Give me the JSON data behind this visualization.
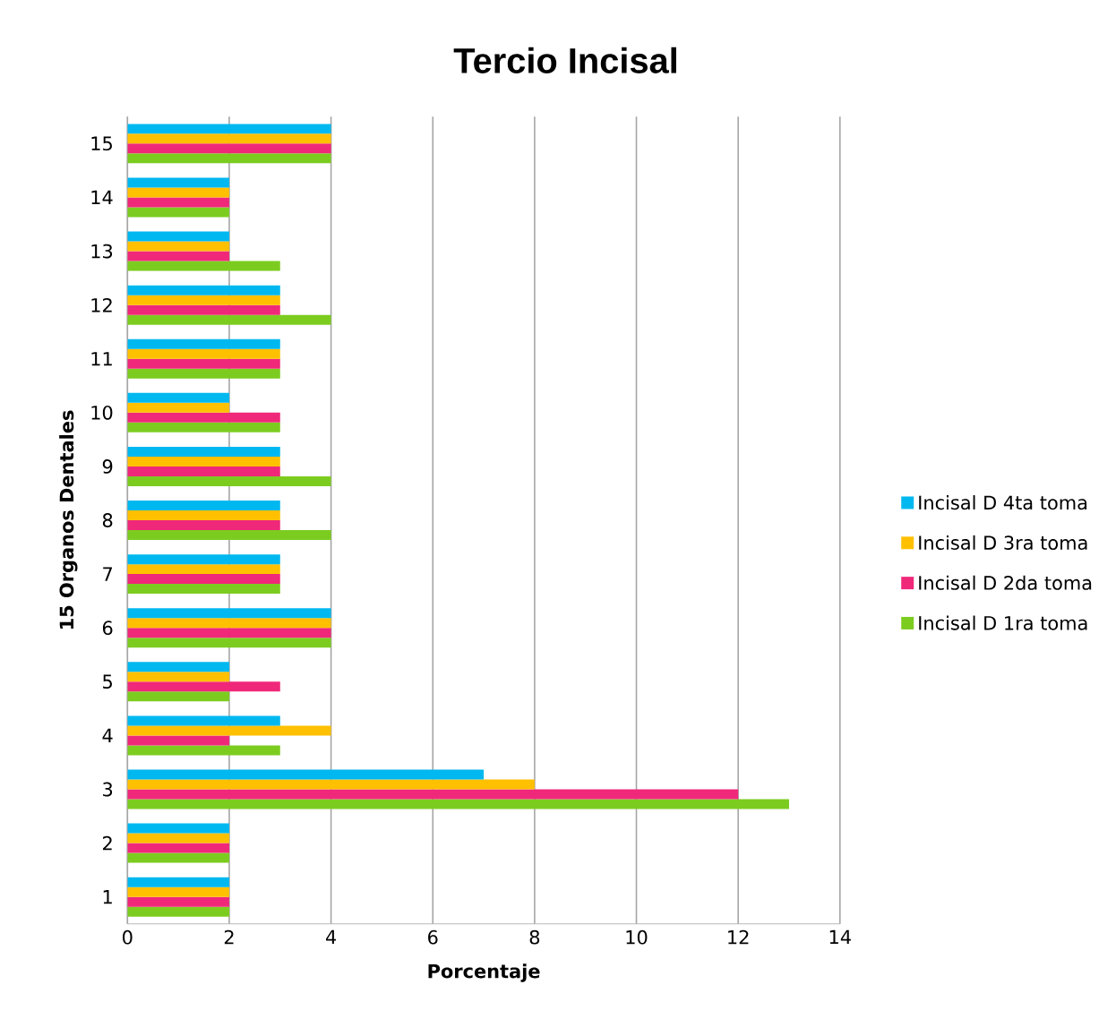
{
  "chart_data": {
    "type": "bar",
    "orientation": "horizontal",
    "title": "Tercio Incisal",
    "xlabel": "Porcentaje",
    "ylabel": "15 Organos Dentales",
    "categories": [
      "15",
      "14",
      "13",
      "12",
      "11",
      "10",
      "9",
      "8",
      "7",
      "6",
      "5",
      "4",
      "3",
      "2",
      "1"
    ],
    "series": [
      {
        "name": "Incisal D 4ta toma",
        "color": "#00b8f0",
        "values": [
          4,
          2,
          2,
          3,
          3,
          2,
          3,
          3,
          3,
          4,
          2,
          3,
          7,
          2,
          2
        ]
      },
      {
        "name": "Incisal D 3ra toma",
        "color": "#ffc000",
        "values": [
          4,
          2,
          2,
          3,
          3,
          2,
          3,
          3,
          3,
          4,
          2,
          4,
          8,
          2,
          2
        ]
      },
      {
        "name": "Incisal D 2da toma",
        "color": "#f0287a",
        "values": [
          4,
          2,
          2,
          3,
          3,
          3,
          3,
          3,
          3,
          4,
          3,
          2,
          12,
          2,
          2
        ]
      },
      {
        "name": "Incisal D 1ra toma",
        "color": "#7ccc20",
        "values": [
          4,
          2,
          3,
          4,
          3,
          3,
          4,
          4,
          3,
          4,
          2,
          3,
          13,
          2,
          2
        ]
      }
    ],
    "xlim": [
      0,
      14
    ],
    "xticks": [
      0,
      2,
      4,
      6,
      8,
      10,
      12,
      14
    ],
    "grid": "x",
    "legend": "right"
  }
}
